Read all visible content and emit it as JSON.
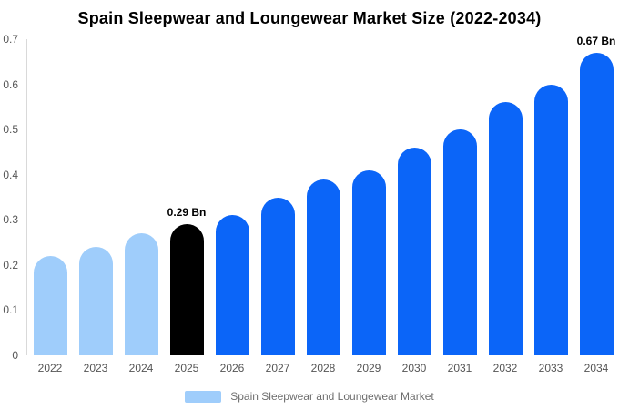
{
  "colors": {
    "historical": "#9fcdfb",
    "base_year": "#000000",
    "forecast": "#0b65f8",
    "axis_line": "#d9d9d9",
    "tick_text": "#555555",
    "legend_text": "#6e6e6e",
    "title_text": "#000000",
    "background": "#ffffff"
  },
  "legend": {
    "label": "Spain Sleepwear and Loungewear Market",
    "swatch_color": "#9fcdfb"
  },
  "chart_data": {
    "type": "bar",
    "title": "Spain Sleepwear and Loungewear Market Size (2022-2034)",
    "xlabel": "",
    "ylabel": "",
    "unit": "Bn",
    "categories": [
      "2022",
      "2023",
      "2024",
      "2025",
      "2026",
      "2027",
      "2028",
      "2029",
      "2030",
      "2031",
      "2032",
      "2033",
      "2034"
    ],
    "values": [
      0.22,
      0.24,
      0.27,
      0.29,
      0.31,
      0.35,
      0.39,
      0.41,
      0.46,
      0.5,
      0.56,
      0.6,
      0.67
    ],
    "point_colors": [
      "historical",
      "historical",
      "historical",
      "base_year",
      "forecast",
      "forecast",
      "forecast",
      "forecast",
      "forecast",
      "forecast",
      "forecast",
      "forecast",
      "forecast"
    ],
    "point_labels": {
      "2025": "0.29 Bn",
      "2034": "0.67 Bn"
    },
    "ylim": [
      0,
      0.7
    ],
    "ytick_labels": [
      "0",
      "0.1",
      "0.2",
      "0.3",
      "0.4",
      "0.5",
      "0.6",
      "0.7"
    ],
    "grid": false,
    "legend_entries": [
      "Spain Sleepwear and Loungewear Market"
    ],
    "legend_position": "bottom"
  }
}
